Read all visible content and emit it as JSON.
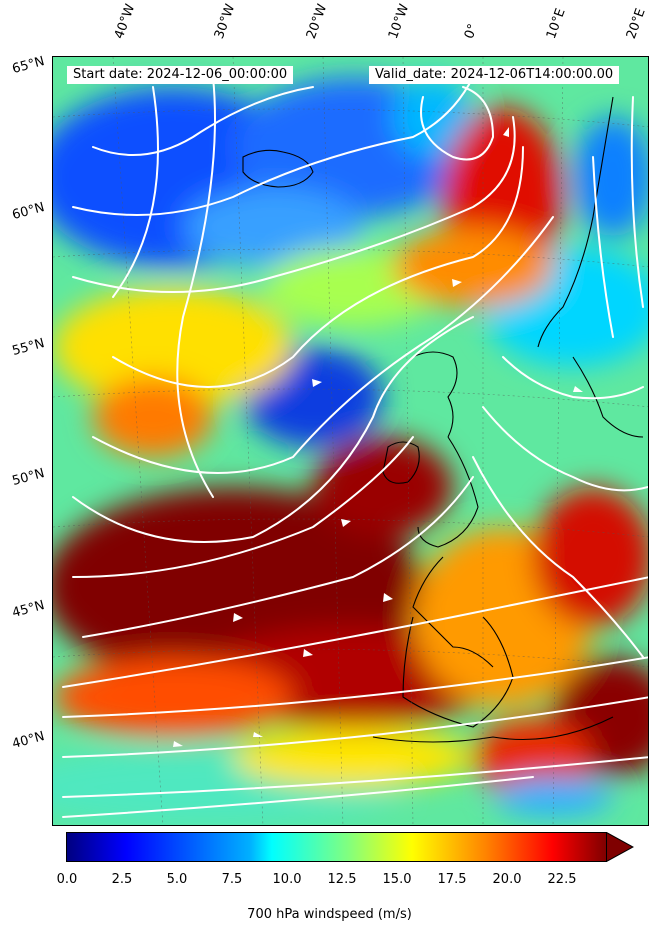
{
  "title_row": {
    "start_date": "Start date: 2024-12-06_00:00:00",
    "valid_date": "Valid_date: 2024-12-06T14:00:00.00"
  },
  "longitude_labels": [
    "40°W",
    "30°W",
    "20°W",
    "10°W",
    "0°",
    "10°E",
    "20°E"
  ],
  "latitude_labels": [
    "65°N",
    "60°N",
    "55°N",
    "50°N",
    "45°N",
    "40°N"
  ],
  "colorbar": {
    "label": "700 hPa windspeed (m/s)",
    "ticks": [
      "0.0",
      "2.5",
      "5.0",
      "7.5",
      "10.0",
      "12.5",
      "15.0",
      "17.5",
      "20.0",
      "22.5"
    ],
    "range": [
      0,
      25
    ],
    "extend": "max",
    "colormap": "jet",
    "colors": [
      "#00007f",
      "#0000ff",
      "#007fff",
      "#00ffff",
      "#7fff7f",
      "#ffff00",
      "#ff7f00",
      "#ff0000",
      "#7f0000"
    ]
  },
  "map": {
    "field": "700 hPa windspeed",
    "overlay": "white streamlines",
    "coastline_color": "#000000"
  }
}
